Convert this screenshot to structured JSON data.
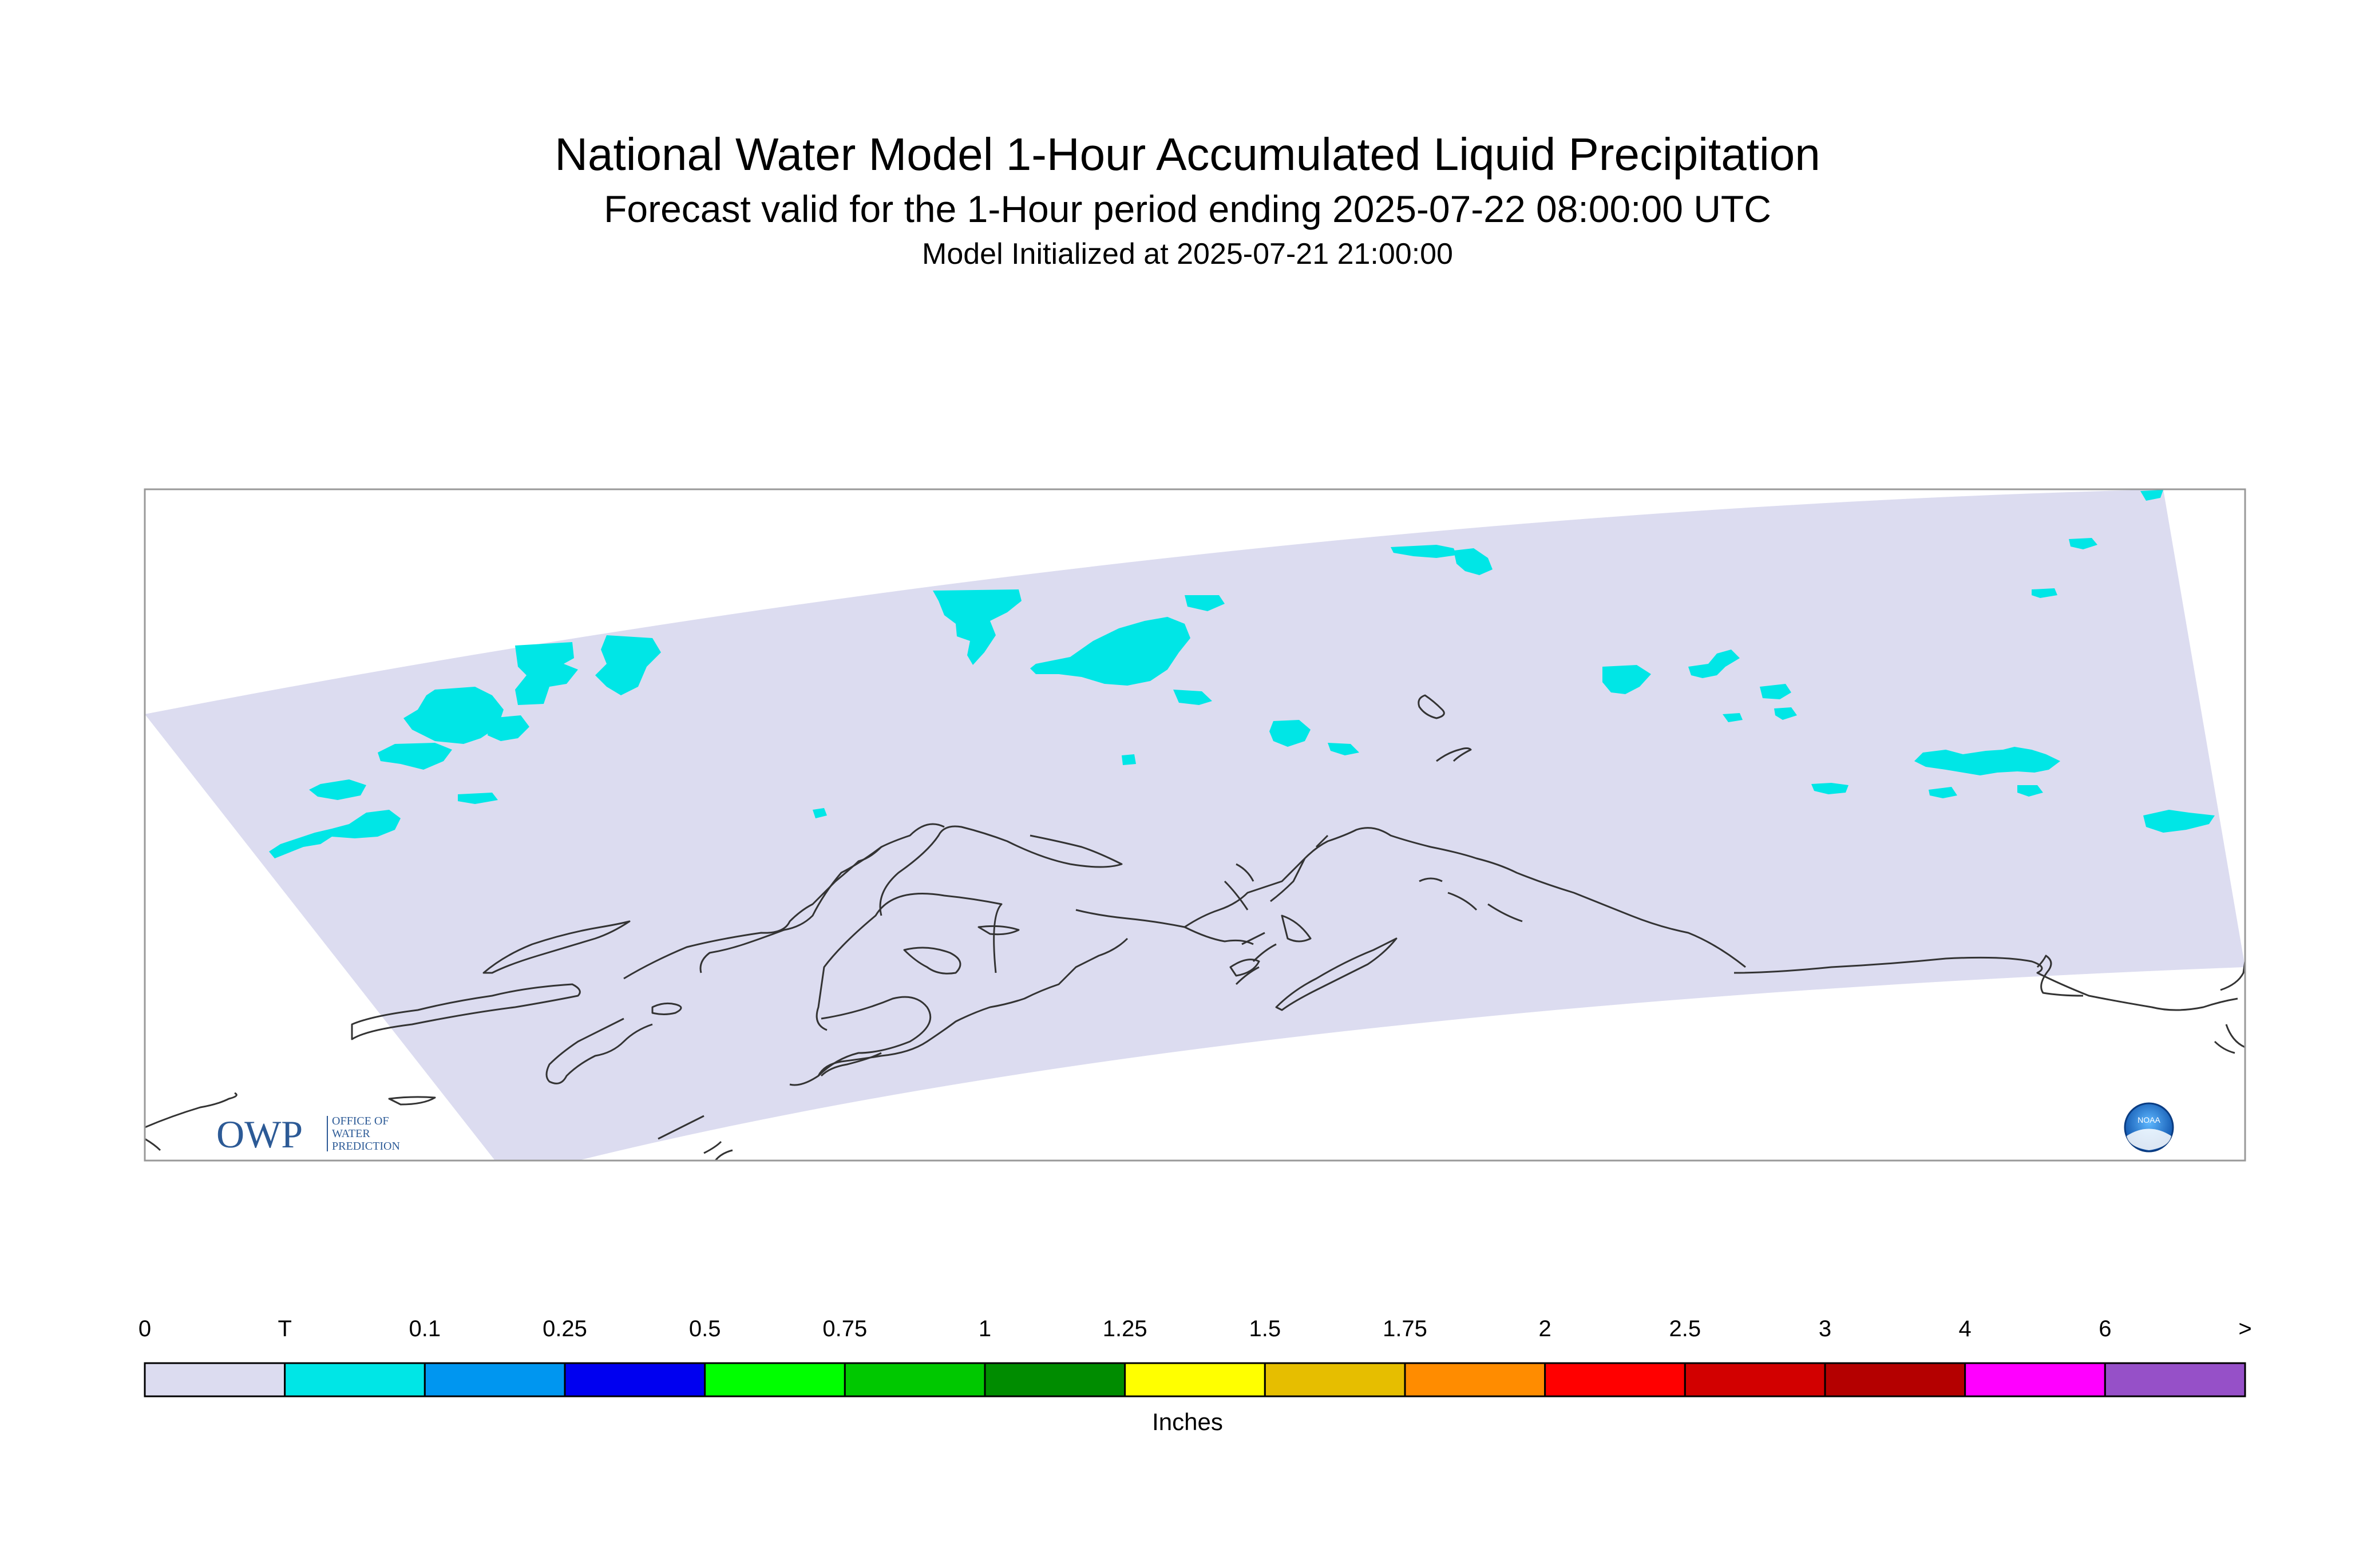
{
  "title": "National Water Model 1-Hour Accumulated Liquid Precipitation",
  "subtitle": "Forecast valid for the 1-Hour period ending 2025-07-22 08:00:00 UTC",
  "initialized": "Model Initialized at 2025-07-21 21:00:00",
  "colorbar": {
    "units": "Inches",
    "labels": [
      "0",
      "T",
      "0.1",
      "0.25",
      "0.5",
      "0.75",
      "1",
      "1.25",
      "1.5",
      "1.75",
      "2",
      "2.5",
      "3",
      "4",
      "6",
      ">"
    ],
    "colors": [
      "#dcdcf0",
      "#00e6e6",
      "#0096f0",
      "#0000f0",
      "#00ff00",
      "#00c800",
      "#008c00",
      "#ffff00",
      "#e6be00",
      "#ff8c00",
      "#ff0000",
      "#d20000",
      "#b40000",
      "#ff00ff",
      "#9650c8"
    ]
  },
  "logos": {
    "owp": {
      "mark": "OWP",
      "line1": "OFFICE OF",
      "line2": "WATER",
      "line3": "PREDICTION"
    },
    "noaa": {
      "mark": "NOAA"
    }
  },
  "colors": {
    "domain_fill": "#dcdcf0",
    "trace_precip": "#00e6e6",
    "coastline": "#333333",
    "frame": "#999999",
    "owp_blue": "#2c5a96"
  }
}
